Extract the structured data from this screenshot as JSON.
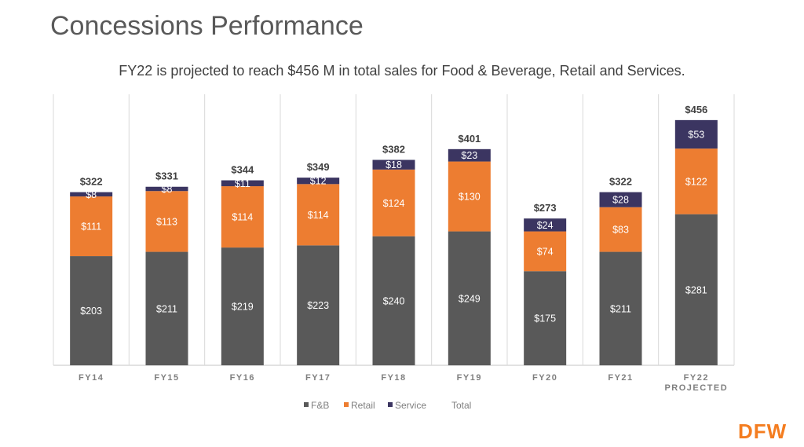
{
  "slide": {
    "title": "Concessions Performance",
    "subtitle": "FY22 is projected to reach $456 M in total sales for Food & Beverage, Retail and Services.",
    "logo_text": "DFW"
  },
  "colors": {
    "fb": "#595959",
    "retail": "#ed7d31",
    "service": "#3b3561",
    "total_text": "#404040",
    "grid": "#d9d9d9",
    "axis_label": "#7f7f7f"
  },
  "chart_data": {
    "type": "bar",
    "stacked": true,
    "categories": [
      "FY14",
      "FY15",
      "FY16",
      "FY17",
      "FY18",
      "FY19",
      "FY20",
      "FY21",
      "FY22\nPROJECTED"
    ],
    "series": [
      {
        "name": "F&B",
        "values": [
          203,
          211,
          219,
          223,
          240,
          249,
          175,
          211,
          281
        ],
        "labels": [
          "$203",
          "$211",
          "$219",
          "$223",
          "$240",
          "$249",
          "$175",
          "$211",
          "$281"
        ]
      },
      {
        "name": "Retail",
        "values": [
          111,
          113,
          114,
          114,
          124,
          130,
          74,
          83,
          122
        ],
        "labels": [
          "$111",
          "$113",
          "$114",
          "$114",
          "$124",
          "$130",
          "$74",
          "$83",
          "$122"
        ]
      },
      {
        "name": "Service",
        "values": [
          8,
          8,
          11,
          12,
          18,
          23,
          24,
          28,
          53
        ],
        "labels": [
          "$8",
          "$8",
          "$11",
          "$12",
          "$18",
          "$23",
          "$24",
          "$28",
          "$53"
        ]
      }
    ],
    "totals": {
      "name": "Total",
      "values": [
        322,
        331,
        344,
        349,
        382,
        401,
        273,
        322,
        456
      ],
      "labels": [
        "$322",
        "$331",
        "$344",
        "$349",
        "$382",
        "$401",
        "$273",
        "$322",
        "$456"
      ]
    },
    "ylim": [
      0,
      500
    ],
    "grid": true,
    "legend_position": "bottom"
  }
}
